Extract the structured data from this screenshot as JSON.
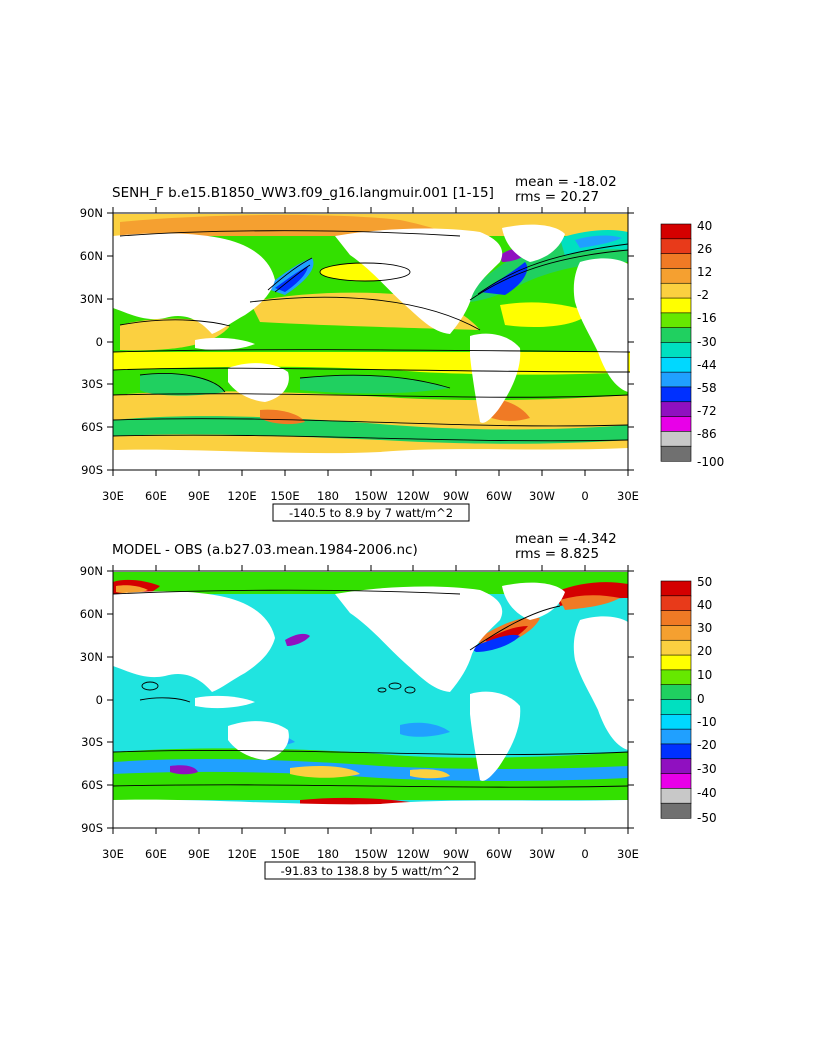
{
  "panels": [
    {
      "title": "SENH_F b.e15.B1850_WW3.f09_g16.langmuir.001 [1-15]",
      "mean_label": "mean = -18.02",
      "rms_label": "rms = 20.27",
      "range_label": "-140.5 to 8.9 by 7 watt/m^2",
      "lat_labels": [
        "90N",
        "60N",
        "30N",
        "0",
        "30S",
        "60S",
        "90S"
      ],
      "lon_labels": [
        "30E",
        "60E",
        "90E",
        "120E",
        "150E",
        "180",
        "150W",
        "120W",
        "90W",
        "60W",
        "30W",
        "0",
        "30E"
      ],
      "colorbar_labels": [
        "40",
        "26",
        "12",
        "-2",
        "-16",
        "-30",
        "-44",
        "-58",
        "-72",
        "-86",
        "-100"
      ],
      "colorbar_colors": [
        "#d40000",
        "#e83a1a",
        "#f07a25",
        "#f5a030",
        "#fbd040",
        "#ffff00",
        "#66e800",
        "#20d060",
        "#00e0c0",
        "#00d8ff",
        "#20a0ff",
        "#0030ff",
        "#9010c0",
        "#e800e8",
        "#c8c8c8",
        "#707070"
      ]
    },
    {
      "title": "MODEL - OBS (a.b27.03.mean.1984-2006.nc)",
      "mean_label": "mean = -4.342",
      "rms_label": "rms = 8.825",
      "range_label": "-91.83 to 138.8 by 5 watt/m^2",
      "lat_labels": [
        "90N",
        "60N",
        "30N",
        "0",
        "30S",
        "60S",
        "90S"
      ],
      "lon_labels": [
        "30E",
        "60E",
        "90E",
        "120E",
        "150E",
        "180",
        "150W",
        "120W",
        "90W",
        "60W",
        "30W",
        "0",
        "30E"
      ],
      "colorbar_labels": [
        "50",
        "40",
        "30",
        "20",
        "10",
        "0",
        "-10",
        "-20",
        "-30",
        "-40",
        "-50"
      ],
      "colorbar_colors": [
        "#d40000",
        "#e83a1a",
        "#f07a25",
        "#f5a030",
        "#fbd040",
        "#ffff00",
        "#66e800",
        "#20d060",
        "#00e0c0",
        "#00d8ff",
        "#20a0ff",
        "#0030ff",
        "#9010c0",
        "#e800e8",
        "#c8c8c8",
        "#707070"
      ]
    }
  ]
}
